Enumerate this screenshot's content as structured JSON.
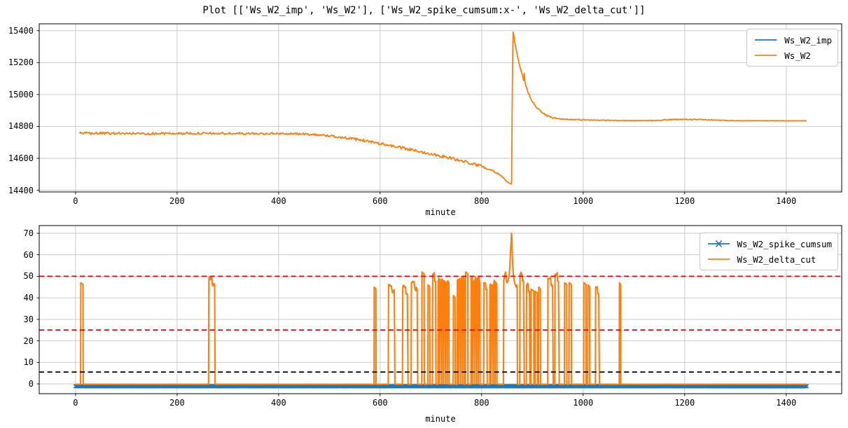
{
  "title": "Plot [['Ws_W2_imp', 'Ws_W2'], ['Ws_W2_spike_cumsum:x-', 'Ws_W2_delta_cut']]",
  "colors": {
    "blue": "#1f77b4",
    "orange": "#ff7f0e",
    "red": "#ef0000",
    "black": "#000000",
    "grid": "#c6c6c6"
  },
  "chart_data": [
    {
      "type": "line",
      "title": "",
      "xlabel": "minute",
      "ylabel": "",
      "xticks": [
        0,
        200,
        400,
        600,
        800,
        1000,
        1200,
        1400
      ],
      "yticks": [
        14400,
        14600,
        14800,
        15000,
        15200,
        15400
      ],
      "xlim": [
        -72,
        1512
      ],
      "ylim": [
        14390,
        15444
      ],
      "grid": true,
      "legend_position": "upper right",
      "series": [
        {
          "name": "Ws_W2_imp",
          "color": "#1f77b4",
          "marker": null,
          "note": "identical to Ws_W2, hidden beneath it"
        },
        {
          "name": "Ws_W2",
          "color": "#ff7f0e",
          "marker": null,
          "keypoints_minute_value_noise": [
            [
              8,
              14757,
              7
            ],
            [
              80,
              14756,
              7
            ],
            [
              160,
              14755,
              7
            ],
            [
              240,
              14756,
              7
            ],
            [
              320,
              14755,
              7
            ],
            [
              400,
              14755,
              6
            ],
            [
              440,
              14753,
              6
            ],
            [
              470,
              14749,
              6
            ],
            [
              500,
              14741,
              7
            ],
            [
              530,
              14729,
              7
            ],
            [
              560,
              14715,
              8
            ],
            [
              590,
              14699,
              8
            ],
            [
              620,
              14680,
              8
            ],
            [
              650,
              14660,
              9
            ],
            [
              680,
              14641,
              9
            ],
            [
              710,
              14622,
              9
            ],
            [
              740,
              14600,
              9
            ],
            [
              770,
              14576,
              9
            ],
            [
              800,
              14551,
              8
            ],
            [
              820,
              14526,
              7
            ],
            [
              835,
              14500,
              6
            ],
            [
              845,
              14470,
              4
            ],
            [
              851,
              14450,
              3
            ],
            [
              855,
              14441,
              2
            ],
            [
              858,
              14438,
              1
            ],
            [
              859,
              14460,
              0
            ],
            [
              860,
              14850,
              0
            ],
            [
              861,
              15200,
              0
            ],
            [
              862,
              15392,
              0
            ],
            [
              863,
              15375,
              2
            ],
            [
              865,
              15335,
              3
            ],
            [
              868,
              15282,
              4
            ],
            [
              872,
              15222,
              5
            ],
            [
              877,
              15155,
              5
            ],
            [
              883,
              15088,
              4
            ],
            [
              884,
              15135,
              2
            ],
            [
              885,
              15080,
              5
            ],
            [
              890,
              15022,
              6
            ],
            [
              898,
              14967,
              6
            ],
            [
              907,
              14925,
              6
            ],
            [
              917,
              14893,
              5
            ],
            [
              928,
              14868,
              5
            ],
            [
              940,
              14854,
              4
            ],
            [
              955,
              14847,
              3
            ],
            [
              975,
              14843,
              3
            ],
            [
              1000,
              14841,
              3
            ],
            [
              1030,
              14839,
              2
            ],
            [
              1060,
              14837,
              2
            ],
            [
              1090,
              14836,
              2
            ],
            [
              1120,
              14836,
              2
            ],
            [
              1145,
              14838,
              3
            ],
            [
              1170,
              14842,
              3
            ],
            [
              1195,
              14844,
              3
            ],
            [
              1225,
              14843,
              3
            ],
            [
              1255,
              14840,
              2
            ],
            [
              1285,
              14837,
              2
            ],
            [
              1315,
              14836,
              1
            ],
            [
              1355,
              14836,
              1
            ],
            [
              1400,
              14835,
              1
            ],
            [
              1440,
              14835,
              1
            ]
          ]
        }
      ]
    },
    {
      "type": "line",
      "title": "",
      "xlabel": "minute",
      "ylabel": "",
      "xticks": [
        0,
        200,
        400,
        600,
        800,
        1000,
        1200,
        1400
      ],
      "yticks": [
        0,
        10,
        20,
        30,
        40,
        50,
        60,
        70
      ],
      "xlim": [
        -72,
        1512
      ],
      "ylim": [
        -4.6,
        74
      ],
      "grid": true,
      "legend_position": "upper right",
      "thresholds": [
        {
          "y": 50,
          "color": "#ef0000",
          "style": "dashed"
        },
        {
          "y": 25,
          "color": "#ef0000",
          "style": "dashed"
        },
        {
          "y": 5.5,
          "color": "#000000",
          "style": "dashed"
        }
      ],
      "series": [
        {
          "name": "Ws_W2_spike_cumsum",
          "color": "#1f77b4",
          "marker": "x",
          "value": -1.1,
          "x_range": [
            0,
            1440
          ]
        },
        {
          "name": "Ws_W2_delta_cut",
          "color": "#ff7f0e",
          "marker": null,
          "baseline": -0.2,
          "x_range": [
            0,
            1440
          ],
          "spikes_x_width_height_style": [
            [
              10,
              5,
              47,
              0
            ],
            [
              262,
              13,
              50,
              1
            ],
            [
              588,
              4,
              45,
              0
            ],
            [
              616,
              13,
              47,
              1
            ],
            [
              644,
              11,
              46,
              1
            ],
            [
              661,
              13,
              48,
              1
            ],
            [
              682,
              5,
              52,
              0
            ],
            [
              694,
              4,
              46,
              0
            ],
            [
              703,
              7,
              52,
              1
            ],
            [
              714,
              22,
              49,
              2
            ],
            [
              744,
              4,
              41,
              0
            ],
            [
              752,
              13,
              50,
              2
            ],
            [
              768,
              5,
              52,
              0
            ],
            [
              779,
              18,
              50,
              2
            ],
            [
              804,
              7,
              48,
              1
            ],
            [
              816,
              16,
              48,
              2
            ],
            [
              875,
              9,
              52,
              1
            ],
            [
              888,
              7,
              47,
              1
            ],
            [
              897,
              6,
              44,
              0
            ],
            [
              905,
              5,
              43,
              0
            ],
            [
              912,
              4,
              45,
              0
            ],
            [
              930,
              11,
              50,
              1
            ],
            [
              944,
              9,
              52,
              1
            ],
            [
              963,
              5,
              47,
              0
            ],
            [
              972,
              5,
              47,
              0
            ],
            [
              1001,
              5,
              47,
              0
            ],
            [
              1009,
              4,
              46,
              0
            ],
            [
              1024,
              8,
              46,
              1
            ],
            [
              1071,
              3,
              47,
              0
            ]
          ],
          "peak_profile_minute_value": [
            [
              843,
              -0.2
            ],
            [
              843.5,
              48
            ],
            [
              845,
              50
            ],
            [
              847,
              52
            ],
            [
              848,
              49
            ],
            [
              850,
              47
            ],
            [
              852,
              48
            ],
            [
              854,
              50
            ],
            [
              855,
              53
            ],
            [
              856,
              57
            ],
            [
              857,
              62
            ],
            [
              858,
              66
            ],
            [
              858.7,
              70
            ],
            [
              859.5,
              68
            ],
            [
              860,
              63
            ],
            [
              861,
              56
            ],
            [
              862,
              52
            ],
            [
              863,
              50
            ],
            [
              864,
              48
            ],
            [
              866,
              46
            ],
            [
              868,
              45
            ],
            [
              869,
              46
            ],
            [
              870,
              44
            ],
            [
              870.5,
              -0.2
            ]
          ]
        }
      ]
    }
  ]
}
